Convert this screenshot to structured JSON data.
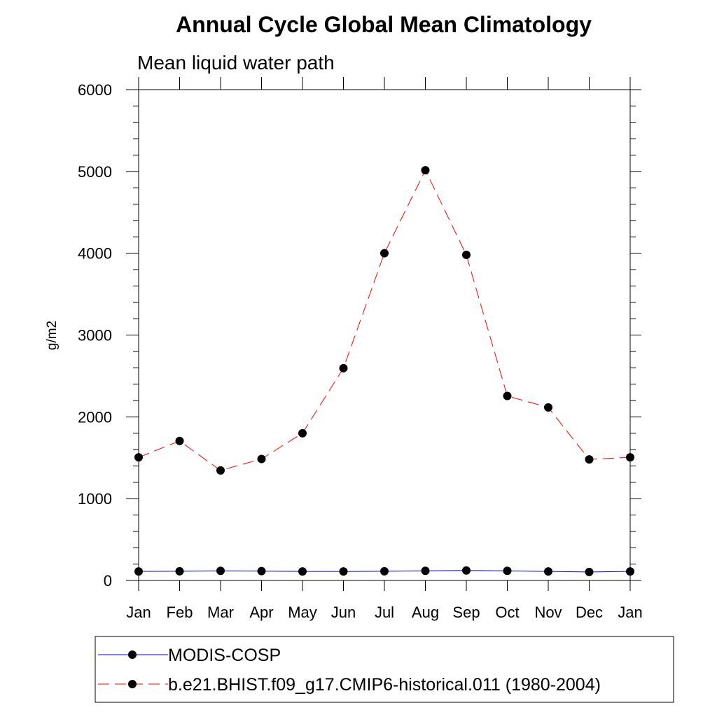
{
  "chart_data": {
    "type": "line",
    "title": "Annual Cycle Global Mean Climatology",
    "subtitle": "Mean liquid water path",
    "ylabel": "g/m2",
    "xlabel": "",
    "categories": [
      "Jan",
      "Feb",
      "Mar",
      "Apr",
      "May",
      "Jun",
      "Jul",
      "Aug",
      "Sep",
      "Oct",
      "Nov",
      "Dec",
      "Jan"
    ],
    "ylim": [
      0,
      6000
    ],
    "yticks": [
      0,
      1000,
      2000,
      3000,
      4000,
      5000,
      6000
    ],
    "grid": false,
    "legend_position": "bottom",
    "series": [
      {
        "name": "MODIS-COSP",
        "color": "#0000ff",
        "line_style": "solid",
        "marker": "filled-circle",
        "values": [
          110,
          112,
          118,
          114,
          110,
          110,
          112,
          118,
          122,
          118,
          110,
          104,
          110
        ]
      },
      {
        "name": "b.e21.BHIST.f09_g17.CMIP6-historical.011 (1980-2004)",
        "color": "#ff0000",
        "line_style": "dashed",
        "marker": "filled-circle",
        "values": [
          1505,
          1705,
          1345,
          1485,
          1800,
          2595,
          4000,
          5015,
          3980,
          2255,
          2115,
          1480,
          1505
        ]
      }
    ]
  }
}
